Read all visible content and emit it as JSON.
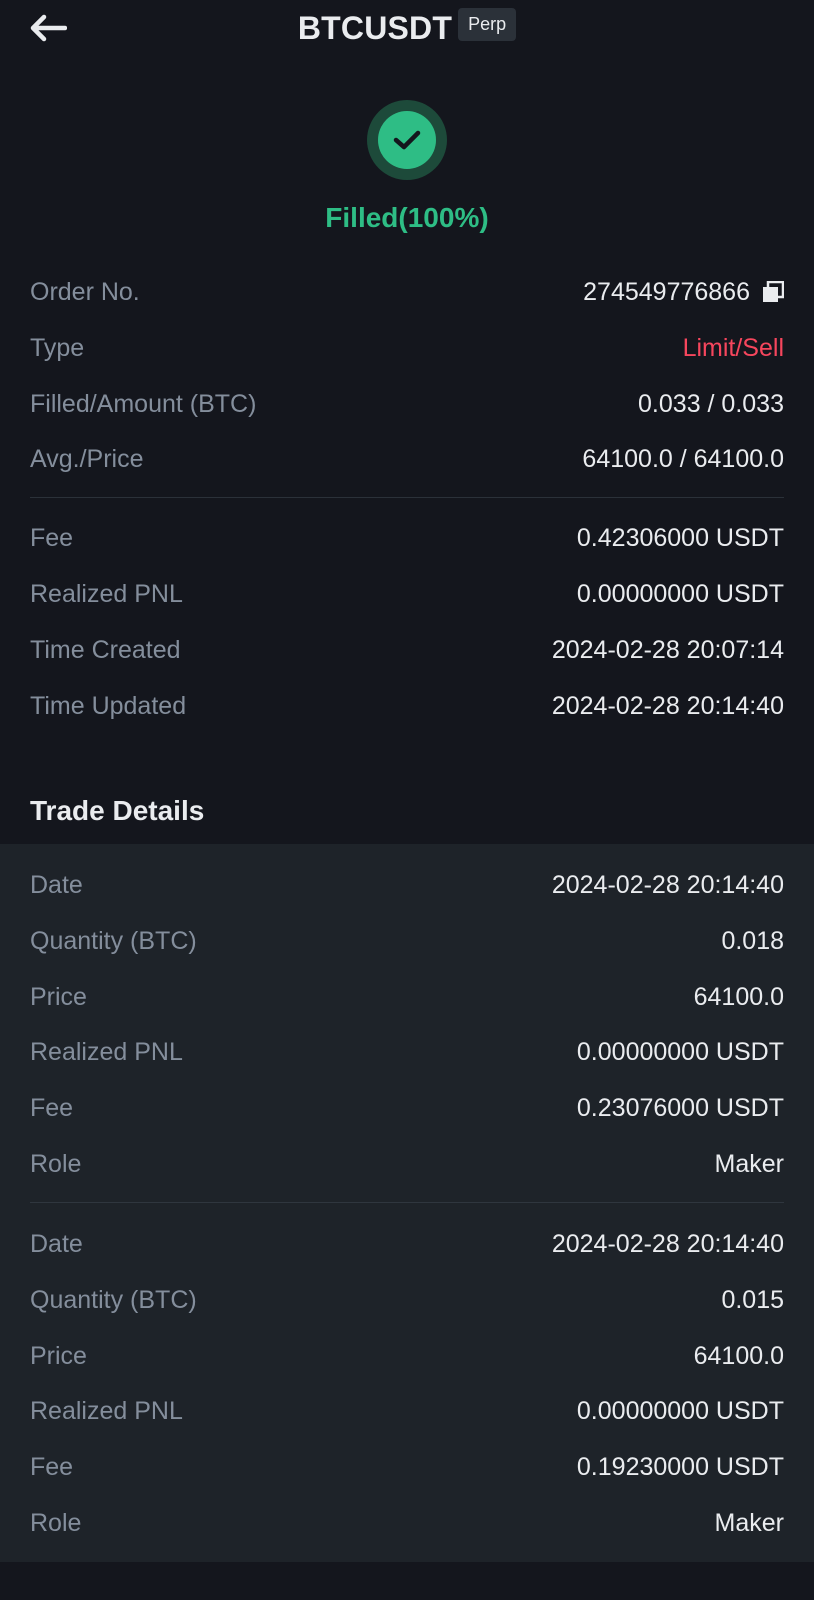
{
  "header": {
    "title": "BTCUSDT",
    "badge": "Perp"
  },
  "status": {
    "text": "Filled(100%)"
  },
  "order": [
    {
      "label": "Order No.",
      "value": "274549776866"
    },
    {
      "label": "Type",
      "value": "Limit/Sell"
    },
    {
      "label": "Filled/Amount (BTC)",
      "value": "0.033 / 0.033"
    },
    {
      "label": "Avg./Price",
      "value": "64100.0 / 64100.0"
    },
    {
      "label": "Fee",
      "value": "0.42306000 USDT"
    },
    {
      "label": "Realized PNL",
      "value": "0.00000000 USDT"
    },
    {
      "label": "Time Created",
      "value": "2024-02-28 20:07:14"
    },
    {
      "label": "Time Updated",
      "value": "2024-02-28 20:14:40"
    }
  ],
  "trade_details": {
    "title": "Trade Details",
    "trades": [
      {
        "rows": [
          {
            "label": "Date",
            "value": "2024-02-28 20:14:40"
          },
          {
            "label": "Quantity (BTC)",
            "value": "0.018"
          },
          {
            "label": "Price",
            "value": "64100.0"
          },
          {
            "label": "Realized PNL",
            "value": "0.00000000 USDT"
          },
          {
            "label": "Fee",
            "value": "0.23076000 USDT"
          },
          {
            "label": "Role",
            "value": "Maker"
          }
        ]
      },
      {
        "rows": [
          {
            "label": "Date",
            "value": "2024-02-28 20:14:40"
          },
          {
            "label": "Quantity (BTC)",
            "value": "0.015"
          },
          {
            "label": "Price",
            "value": "64100.0"
          },
          {
            "label": "Realized PNL",
            "value": "0.00000000 USDT"
          },
          {
            "label": "Fee",
            "value": "0.19230000 USDT"
          },
          {
            "label": "Role",
            "value": "Maker"
          }
        ]
      }
    ]
  },
  "colors": {
    "background": "#14161d",
    "panel": "#1e2329",
    "success": "#2ebd85",
    "sell": "#f6465d",
    "label": "#848e9c",
    "text": "#eaecef"
  },
  "icons": {
    "back": "arrow-left-icon",
    "status": "check-circle-icon",
    "copy": "copy-icon"
  }
}
